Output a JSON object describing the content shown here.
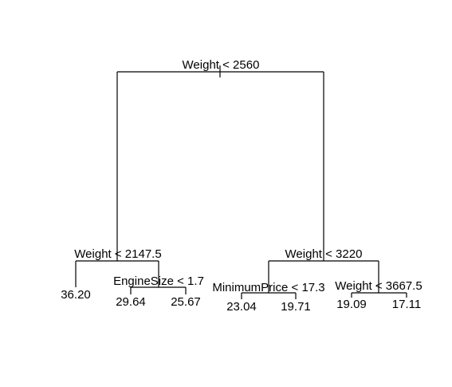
{
  "tree": {
    "root": {
      "split": "Weight < 2560",
      "left": {
        "split": "Weight < 2147.5",
        "left": {
          "leaf": "36.20"
        },
        "right": {
          "split": "EngineSize < 1.7",
          "left": {
            "leaf": "29.64"
          },
          "right": {
            "leaf": "25.67"
          }
        }
      },
      "right": {
        "split": "Weight < 3220",
        "left": {
          "split": "MinimumPrice < 17.3",
          "left": {
            "leaf": "23.04"
          },
          "right": {
            "leaf": "19.71"
          }
        },
        "right": {
          "split": "Weight < 3667.5",
          "left": {
            "leaf": "19.09"
          },
          "right": {
            "leaf": "17.11"
          }
        }
      }
    }
  }
}
